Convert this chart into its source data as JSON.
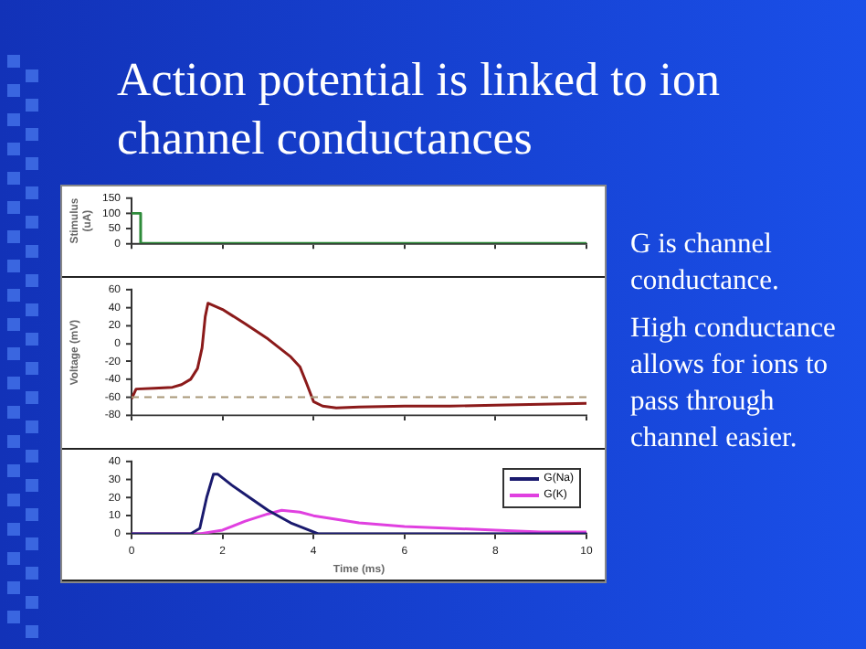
{
  "chart_data": [
    {
      "type": "line",
      "title": "Action potential is linked to ion channel conductances",
      "annotations": [
        "G is channel conductance.",
        "High conductance allows for ions to pass through channel easier."
      ],
      "ylabel": "Stimulus (uA)",
      "xlim": [
        0,
        10
      ],
      "xticks": [
        {
          "value": 0,
          "label": null
        },
        {
          "value": 2,
          "label": null
        },
        {
          "value": 4,
          "label": null
        },
        {
          "value": 6,
          "label": null
        },
        {
          "value": 8,
          "label": null
        },
        {
          "value": 10,
          "label": null
        }
      ],
      "ylim": [
        0,
        150
      ],
      "yticks": [
        0,
        50,
        100,
        150
      ],
      "tick_labels": "y",
      "series": [
        {
          "color": "#2e8b3a",
          "x": [
            0,
            0.2,
            0.2,
            10
          ],
          "values": [
            100,
            100,
            0,
            0
          ]
        }
      ]
    },
    {
      "type": "line",
      "ylabel": "Voltage (mV)",
      "xlim": [
        0,
        10
      ],
      "xticks": [
        {
          "value": 0,
          "label": null
        },
        {
          "value": 2,
          "label": null
        },
        {
          "value": 4,
          "label": null
        },
        {
          "value": 6,
          "label": null
        },
        {
          "value": 8,
          "label": null
        },
        {
          "value": 10,
          "label": null
        }
      ],
      "ylim": [
        -80,
        60
      ],
      "yticks": [
        -80,
        -60,
        -40,
        -20,
        0,
        20,
        40,
        60
      ],
      "tick_labels": "y",
      "ref_lines": [
        {
          "axis": "y",
          "value": -60,
          "color": "#a89878",
          "line_style": "dashed"
        }
      ],
      "series": [
        {
          "color": "#8b1a1a",
          "x": [
            0,
            0.1,
            0.5,
            0.9,
            1.1,
            1.3,
            1.45,
            1.55,
            1.62,
            1.68,
            2.0,
            2.5,
            3.0,
            3.5,
            3.7,
            3.85,
            4.0,
            4.2,
            4.5,
            5,
            6,
            7,
            8,
            9,
            10
          ],
          "values": [
            -62,
            -51,
            -50,
            -49,
            -46,
            -40,
            -28,
            -5,
            30,
            45,
            38,
            22,
            5,
            -15,
            -26,
            -45,
            -65,
            -70,
            -72,
            -71,
            -70,
            -70,
            -69,
            -68,
            -67
          ]
        }
      ]
    },
    {
      "type": "line",
      "xlabel": "Time (ms)",
      "xlim": [
        0,
        10
      ],
      "xticks": [
        0,
        2,
        4,
        6,
        8,
        10
      ],
      "ylim": [
        0,
        40
      ],
      "yticks": [
        0,
        10,
        20,
        30,
        40
      ],
      "legend": "top right",
      "series": [
        {
          "name": "G(Na)",
          "color": "#1a1a6e",
          "x": [
            0,
            1.3,
            1.5,
            1.65,
            1.8,
            1.9,
            2.2,
            2.6,
            3.0,
            3.5,
            4.0,
            4.1,
            10
          ],
          "values": [
            0,
            0,
            3,
            20,
            33,
            33,
            27,
            20,
            13,
            6,
            1,
            0,
            0
          ]
        },
        {
          "name": "G(K)",
          "color": "#e040e0",
          "x": [
            0,
            1.5,
            2.0,
            2.5,
            3.0,
            3.3,
            3.7,
            4.0,
            5,
            6,
            7,
            8,
            9,
            10
          ],
          "values": [
            0,
            0,
            2,
            7,
            11,
            13,
            12,
            10,
            6,
            4,
            3,
            2,
            1,
            1
          ]
        }
      ]
    }
  ]
}
